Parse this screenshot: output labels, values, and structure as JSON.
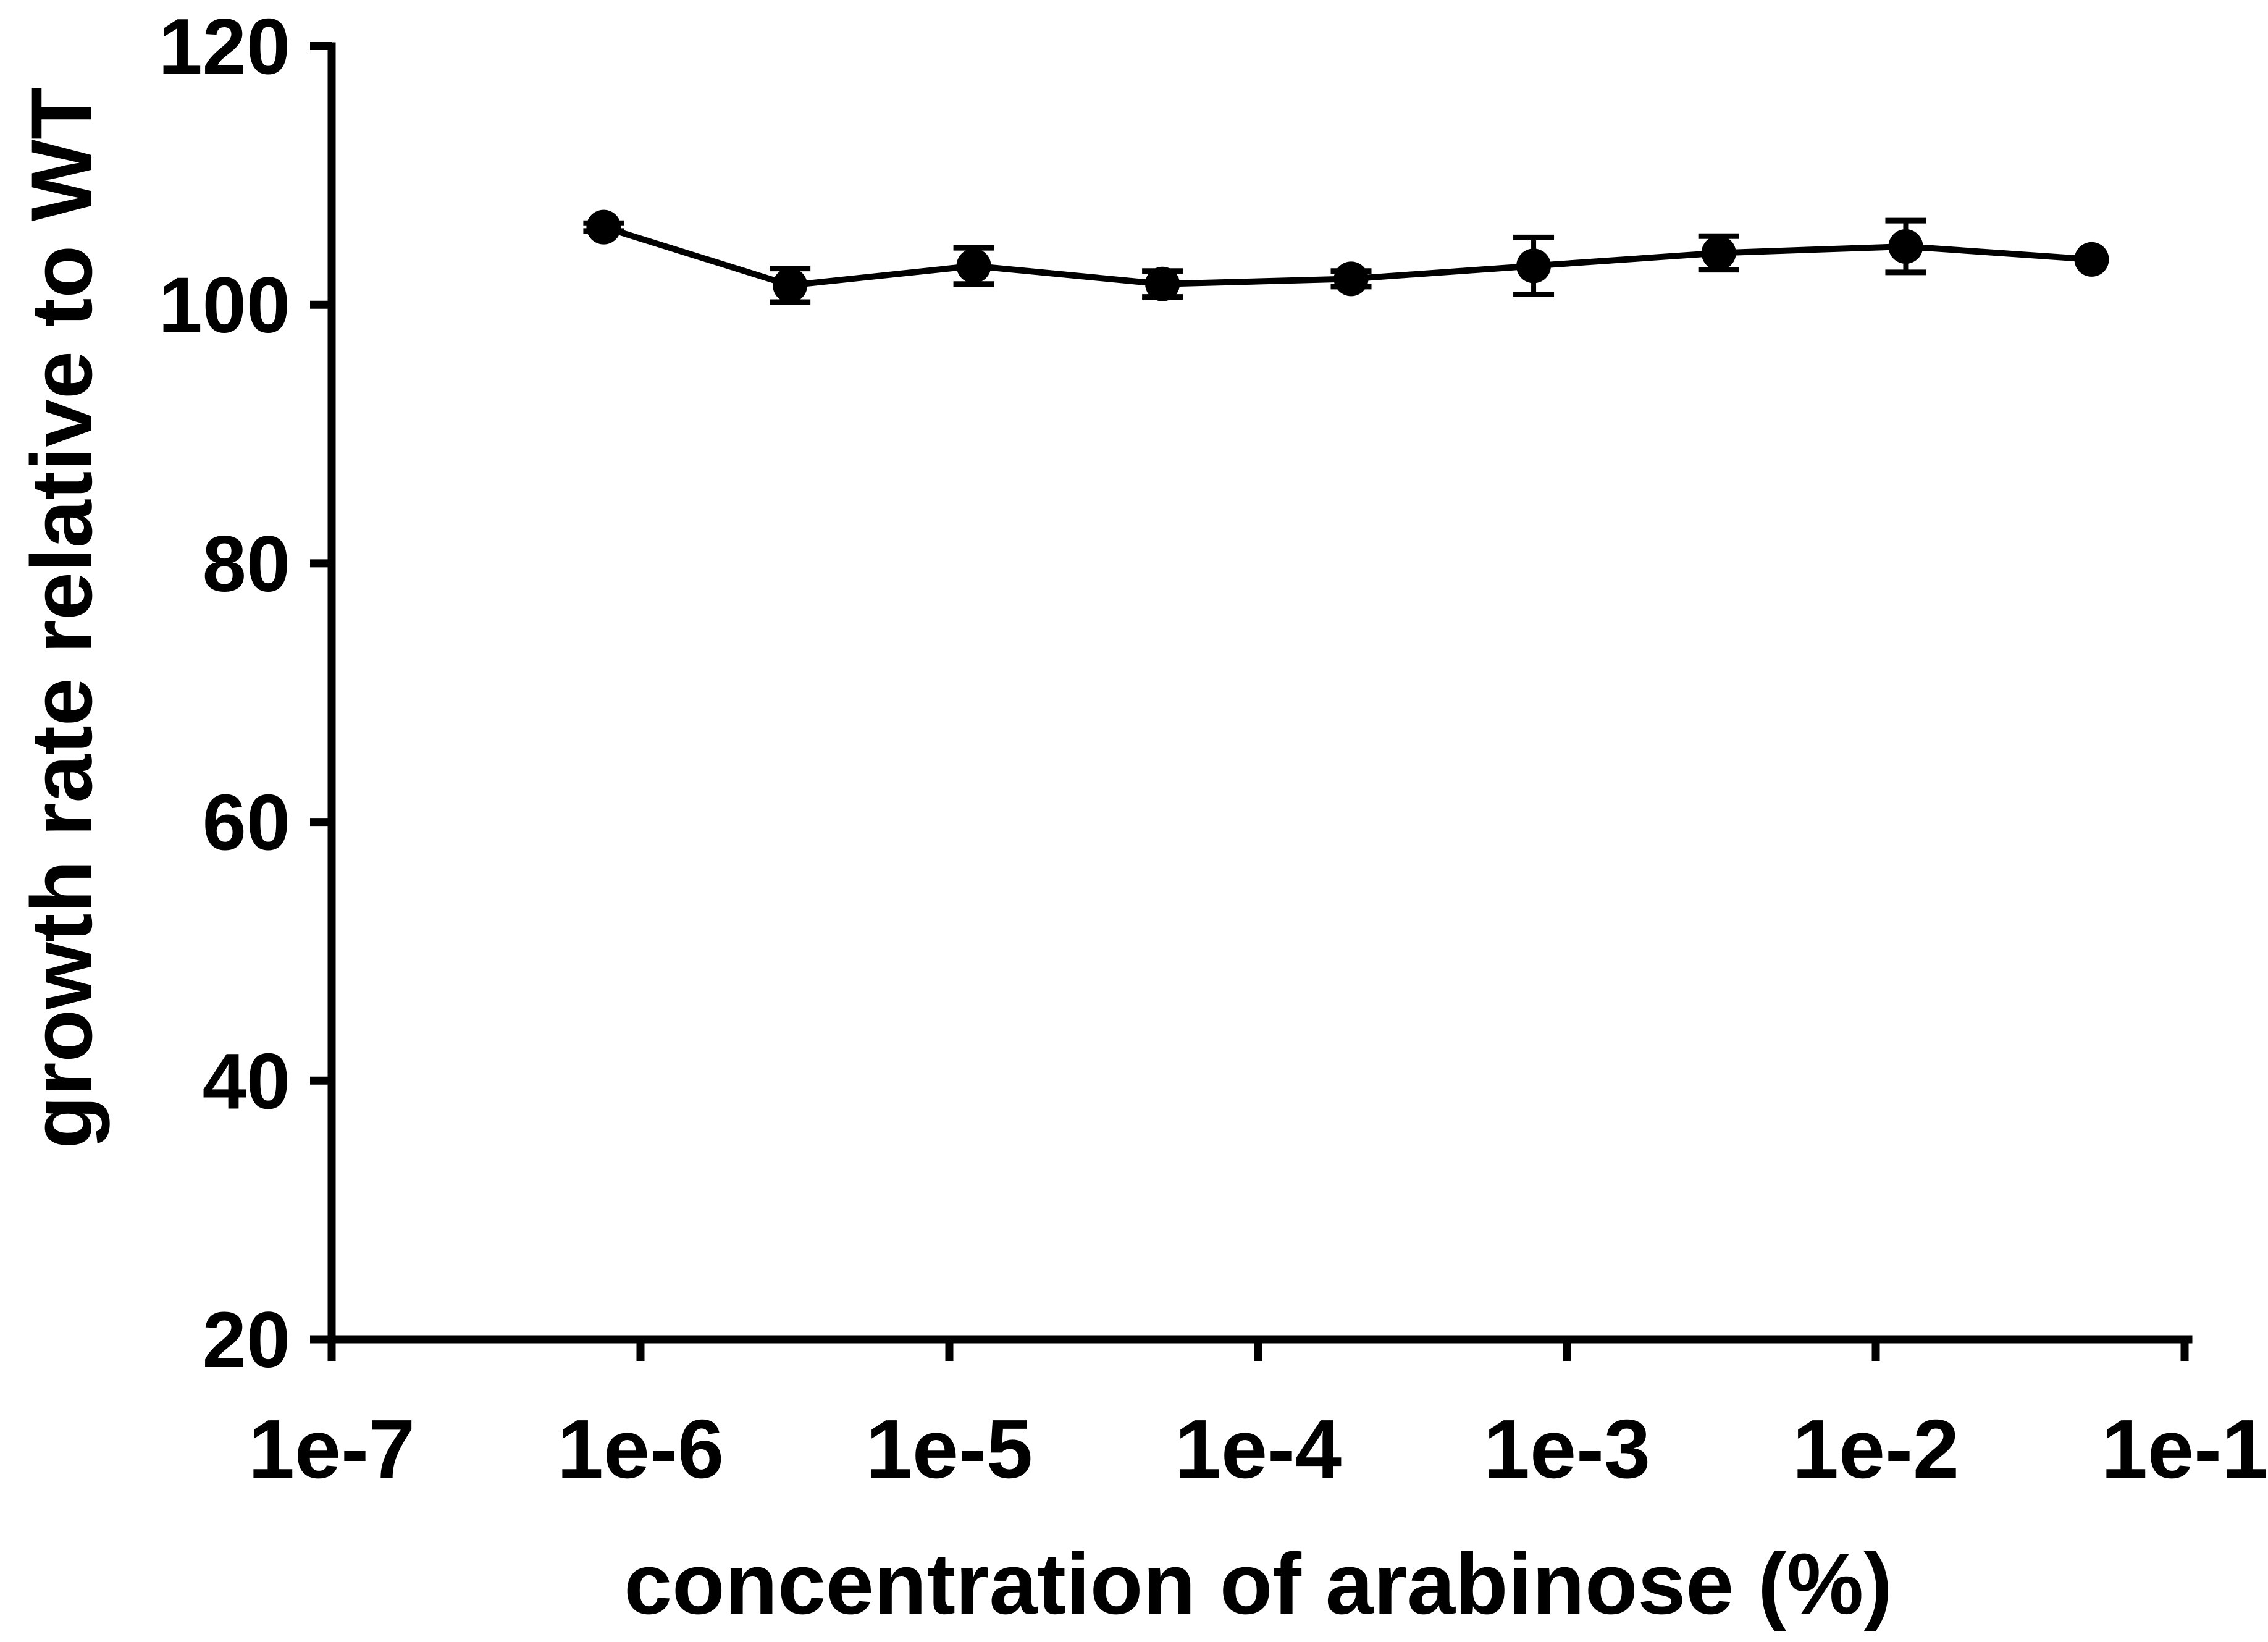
{
  "figure": {
    "background": "#ffffff",
    "ink_color": "#000000"
  },
  "chart_data": {
    "type": "line",
    "title": "",
    "xlabel": "concentration of arabinose (%)",
    "ylabel": "growth rate relative to WT",
    "x_scale": "log",
    "xlim": [
      1e-07,
      0.1
    ],
    "ylim": [
      20,
      120
    ],
    "grid": false,
    "legend": "none",
    "frame": "left-bottom-only",
    "x_ticks": [
      {
        "value": 1e-07,
        "label": "1e-7"
      },
      {
        "value": 1e-06,
        "label": "1e-6"
      },
      {
        "value": 1e-05,
        "label": "1e-5"
      },
      {
        "value": 0.0001,
        "label": "1e-4"
      },
      {
        "value": 0.001,
        "label": "1e-3"
      },
      {
        "value": 0.01,
        "label": "1e-2"
      },
      {
        "value": 0.1,
        "label": "1e-1"
      }
    ],
    "y_ticks": [
      {
        "value": 20,
        "label": "20"
      },
      {
        "value": 40,
        "label": "40"
      },
      {
        "value": 60,
        "label": "60"
      },
      {
        "value": 80,
        "label": "80"
      },
      {
        "value": 100,
        "label": "100"
      },
      {
        "value": 120,
        "label": "120"
      }
    ],
    "series": [
      {
        "name": "growth-rate-relative-to-WT",
        "marker": "filled-circle",
        "error_bars": "vertical-with-caps",
        "color": "#000000",
        "points": [
          {
            "x": 7.6e-07,
            "y": 106.0,
            "err": 0.3
          },
          {
            "x": 3.05e-06,
            "y": 101.5,
            "err": 1.3
          },
          {
            "x": 1.2e-05,
            "y": 103.0,
            "err": 1.4
          },
          {
            "x": 4.9e-05,
            "y": 101.6,
            "err": 1.0
          },
          {
            "x": 0.0002,
            "y": 102.0,
            "err": 0.6
          },
          {
            "x": 0.00078,
            "y": 103.0,
            "err": 2.2
          },
          {
            "x": 0.0031,
            "y": 104.0,
            "err": 1.3
          },
          {
            "x": 0.0125,
            "y": 104.5,
            "err": 2.0
          },
          {
            "x": 0.05,
            "y": 103.5,
            "err": null
          }
        ]
      }
    ]
  }
}
